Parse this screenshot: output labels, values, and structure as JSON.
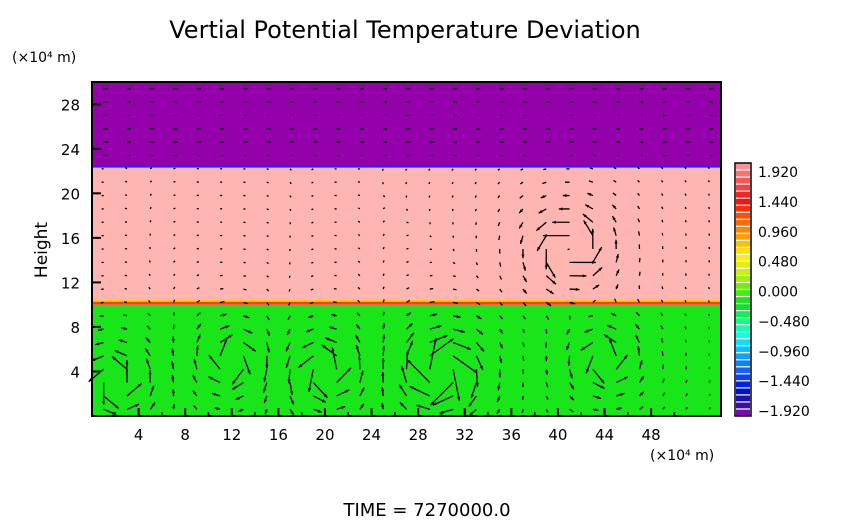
{
  "chart_data": {
    "type": "heatmap",
    "title": "Vertial Potential Temperature Deviation",
    "xlabel": "(×10⁴ m)",
    "ylabel": "Height",
    "yunits": "(×10⁴ m)",
    "xlim": [
      0,
      54
    ],
    "ylim": [
      0,
      30
    ],
    "xticks": [
      "4",
      "8",
      "12",
      "16",
      "20",
      "24",
      "28",
      "32",
      "36",
      "40",
      "44",
      "48"
    ],
    "xtick_values": [
      4,
      8,
      12,
      16,
      20,
      24,
      28,
      32,
      36,
      40,
      44,
      48
    ],
    "yticks": [
      "4",
      "8",
      "12",
      "16",
      "20",
      "24",
      "28"
    ],
    "ytick_values": [
      4,
      8,
      12,
      16,
      20,
      24,
      28
    ],
    "bands": [
      {
        "y0": 0,
        "y1": 10,
        "value": 0.05,
        "color": "#19e619"
      },
      {
        "y0": 10,
        "y1": 22.4,
        "value": 1.92,
        "color": "#ffb6b3"
      },
      {
        "y0": 22.4,
        "y1": 30,
        "value": -1.92,
        "color": "#9400aa"
      }
    ],
    "vortices": [
      {
        "x": 2,
        "y": 3,
        "strength": 1.2
      },
      {
        "x": 12,
        "y": 5,
        "strength": -1
      },
      {
        "x": 20,
        "y": 4,
        "strength": 1.2
      },
      {
        "x": 30,
        "y": 4,
        "strength": -2
      },
      {
        "x": 44,
        "y": 5,
        "strength": 1
      },
      {
        "x": 41,
        "y": 15,
        "strength": 1.5
      }
    ],
    "vector_grid": {
      "dx": 2,
      "dy": 1.2
    },
    "colorbar": {
      "min": -1.92,
      "max": 1.92,
      "labels": [
        "1.920",
        "1.440",
        "0.960",
        "0.480",
        "0.000",
        "−0.480",
        "−0.960",
        "−1.440",
        "−1.920"
      ],
      "label_values": [
        1.92,
        1.44,
        0.96,
        0.48,
        0,
        -0.48,
        -0.96,
        -1.44,
        -1.92
      ]
    },
    "footer": "TIME  =  7270000.0"
  }
}
